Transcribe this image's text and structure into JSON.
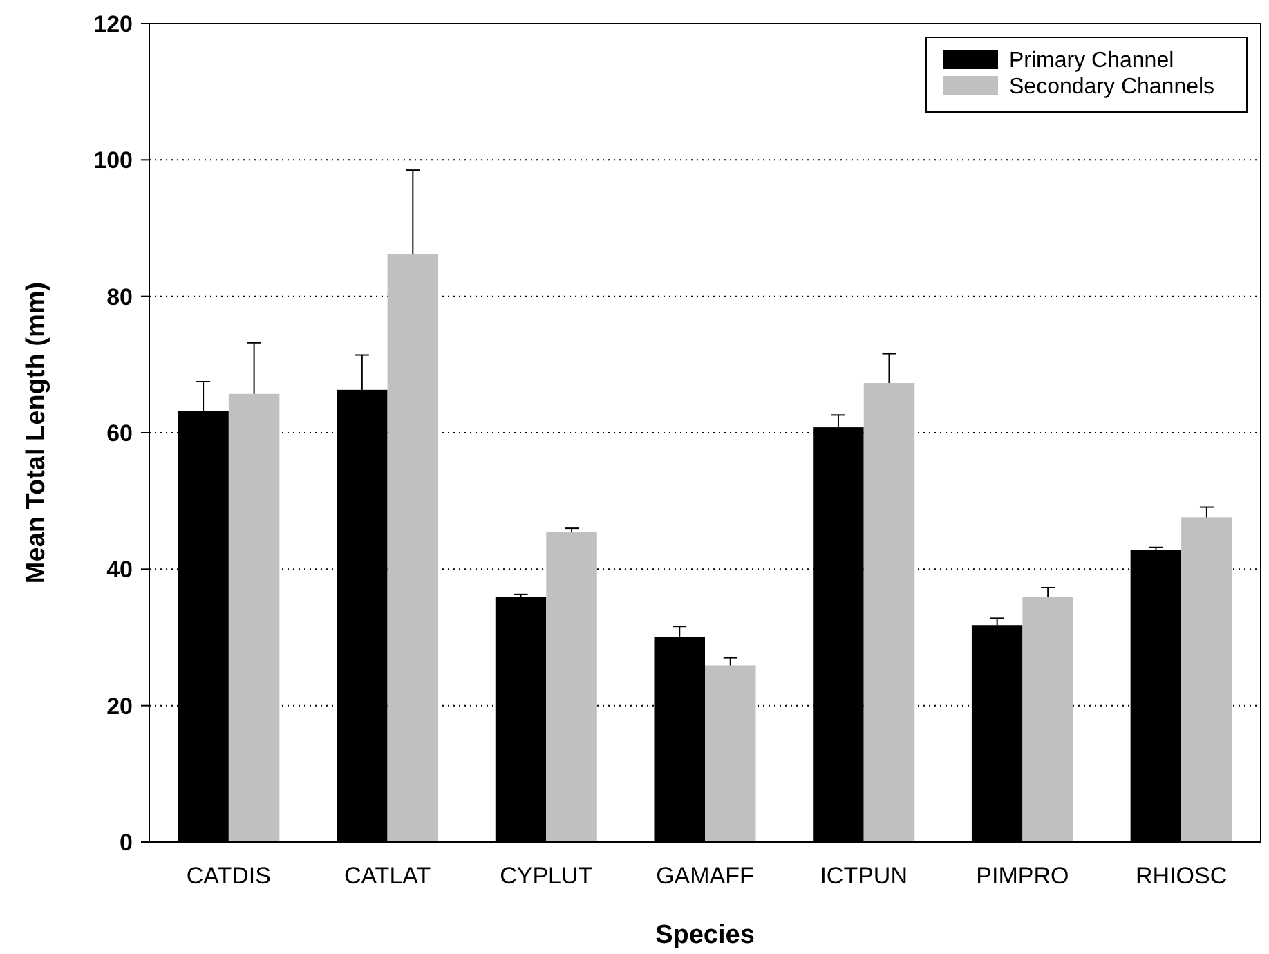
{
  "chart_data": {
    "type": "bar",
    "xlabel": "Species",
    "ylabel": "Mean Total Length (mm)",
    "categories": [
      "CATDIS",
      "CATLAT",
      "CYPLUT",
      "GAMAFF",
      "ICTPUN",
      "PIMPRO",
      "RHIOSC"
    ],
    "series": [
      {
        "name": "Primary Channel",
        "color": "#000000",
        "values": [
          63.2,
          66.3,
          35.9,
          30.0,
          60.8,
          31.8,
          42.8
        ],
        "errors": [
          [
            63.2,
            67.5
          ],
          [
            66.3,
            71.4
          ],
          [
            35.9,
            36.3
          ],
          [
            30.0,
            31.6
          ],
          [
            60.8,
            62.6
          ],
          [
            31.8,
            32.8
          ],
          [
            42.8,
            43.2
          ]
        ]
      },
      {
        "name": "Secondary Channels",
        "color": "#c0c0c0",
        "values": [
          65.7,
          86.2,
          45.4,
          25.9,
          67.3,
          35.9,
          47.6
        ],
        "errors": [
          [
            65.7,
            73.2
          ],
          [
            86.2,
            98.5
          ],
          [
            45.4,
            46.0
          ],
          [
            25.9,
            27.0
          ],
          [
            67.3,
            71.6
          ],
          [
            35.9,
            37.3
          ],
          [
            47.6,
            49.1
          ]
        ]
      }
    ],
    "ylim": [
      0,
      120
    ],
    "yticks": [
      0,
      20,
      40,
      60,
      80,
      100,
      120
    ],
    "grid": "y",
    "legend": "top right"
  }
}
